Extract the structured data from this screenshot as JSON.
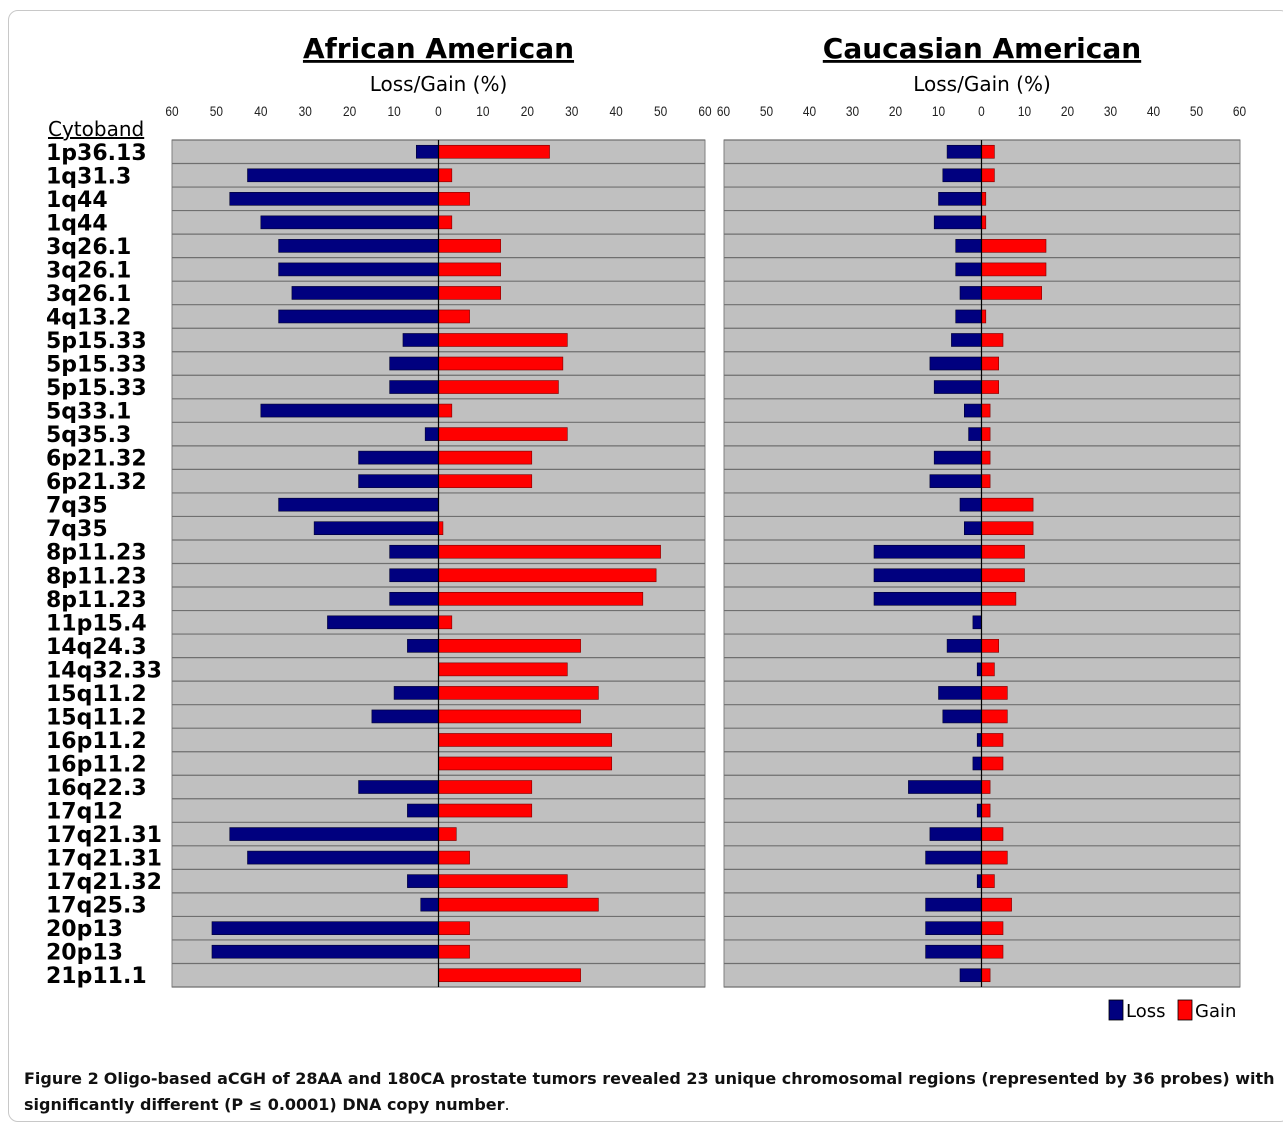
{
  "figure": {
    "caption_label": "Figure 2",
    "caption_text": "Oligo-based aCGH of 28AA and 180CA prostate tumors revealed 23 unique chromosomal regions (represented by 36 probes) with significantly different (P ≤ 0.0001) DNA copy number",
    "caption_end": "."
  },
  "chart_data": {
    "type": "bar",
    "orientation": "horizontal",
    "row_axis_label": "Cytoband",
    "categories": [
      "1p36.13",
      "1q31.3",
      "1q44",
      "1q44",
      "3q26.1",
      "3q26.1",
      "3q26.1",
      "4q13.2",
      "5p15.33",
      "5p15.33",
      "5p15.33",
      "5q33.1",
      "5q35.3",
      "6p21.32",
      "6p21.32",
      "7q35",
      "7q35",
      "8p11.23",
      "8p11.23",
      "8p11.23",
      "11p15.4",
      "14q24.3",
      "14q32.33",
      "15q11.2",
      "15q11.2",
      "16p11.2",
      "16p11.2",
      "16q22.3",
      "17q12",
      "17q21.31",
      "17q21.31",
      "17q21.32",
      "17q25.3",
      "20p13",
      "20p13",
      "21p11.1"
    ],
    "x_ticks": [
      60,
      50,
      40,
      30,
      20,
      10,
      0,
      10,
      20,
      30,
      40,
      50,
      60
    ],
    "xlim": [
      -60,
      60
    ],
    "grid": true,
    "legend": {
      "position": "bottom-right",
      "entries": [
        {
          "name": "Loss",
          "color": "#00007f"
        },
        {
          "name": "Gain",
          "color": "#ff0000"
        }
      ]
    },
    "panels": [
      {
        "title": "African American",
        "xlabel": "Loss/Gain (%)",
        "series": [
          {
            "name": "Loss",
            "color": "#00007f",
            "values": [
              5,
              43,
              47,
              40,
              36,
              36,
              33,
              36,
              8,
              11,
              11,
              40,
              3,
              18,
              18,
              36,
              28,
              11,
              11,
              11,
              25,
              7,
              0,
              10,
              15,
              0,
              0,
              18,
              7,
              47,
              43,
              7,
              4,
              51,
              51,
              0
            ]
          },
          {
            "name": "Gain",
            "color": "#ff0000",
            "values": [
              25,
              3,
              7,
              3,
              14,
              14,
              14,
              7,
              29,
              28,
              27,
              3,
              29,
              21,
              21,
              0,
              1,
              50,
              49,
              46,
              3,
              32,
              29,
              36,
              32,
              39,
              39,
              21,
              21,
              4,
              7,
              29,
              36,
              7,
              7,
              32
            ]
          }
        ]
      },
      {
        "title": "Caucasian American",
        "xlabel": "Loss/Gain (%)",
        "series": [
          {
            "name": "Loss",
            "color": "#00007f",
            "values": [
              8,
              9,
              10,
              11,
              6,
              6,
              5,
              6,
              7,
              12,
              11,
              4,
              3,
              11,
              12,
              5,
              4,
              25,
              25,
              25,
              2,
              8,
              1,
              10,
              9,
              1,
              2,
              17,
              1,
              12,
              13,
              1,
              13,
              13,
              13,
              5
            ]
          },
          {
            "name": "Gain",
            "color": "#ff0000",
            "values": [
              3,
              3,
              1,
              1,
              15,
              15,
              14,
              1,
              5,
              4,
              4,
              2,
              2,
              2,
              2,
              12,
              12,
              10,
              10,
              8,
              0,
              4,
              3,
              6,
              6,
              5,
              5,
              2,
              2,
              5,
              6,
              3,
              7,
              5,
              5,
              2
            ]
          }
        ]
      }
    ]
  }
}
